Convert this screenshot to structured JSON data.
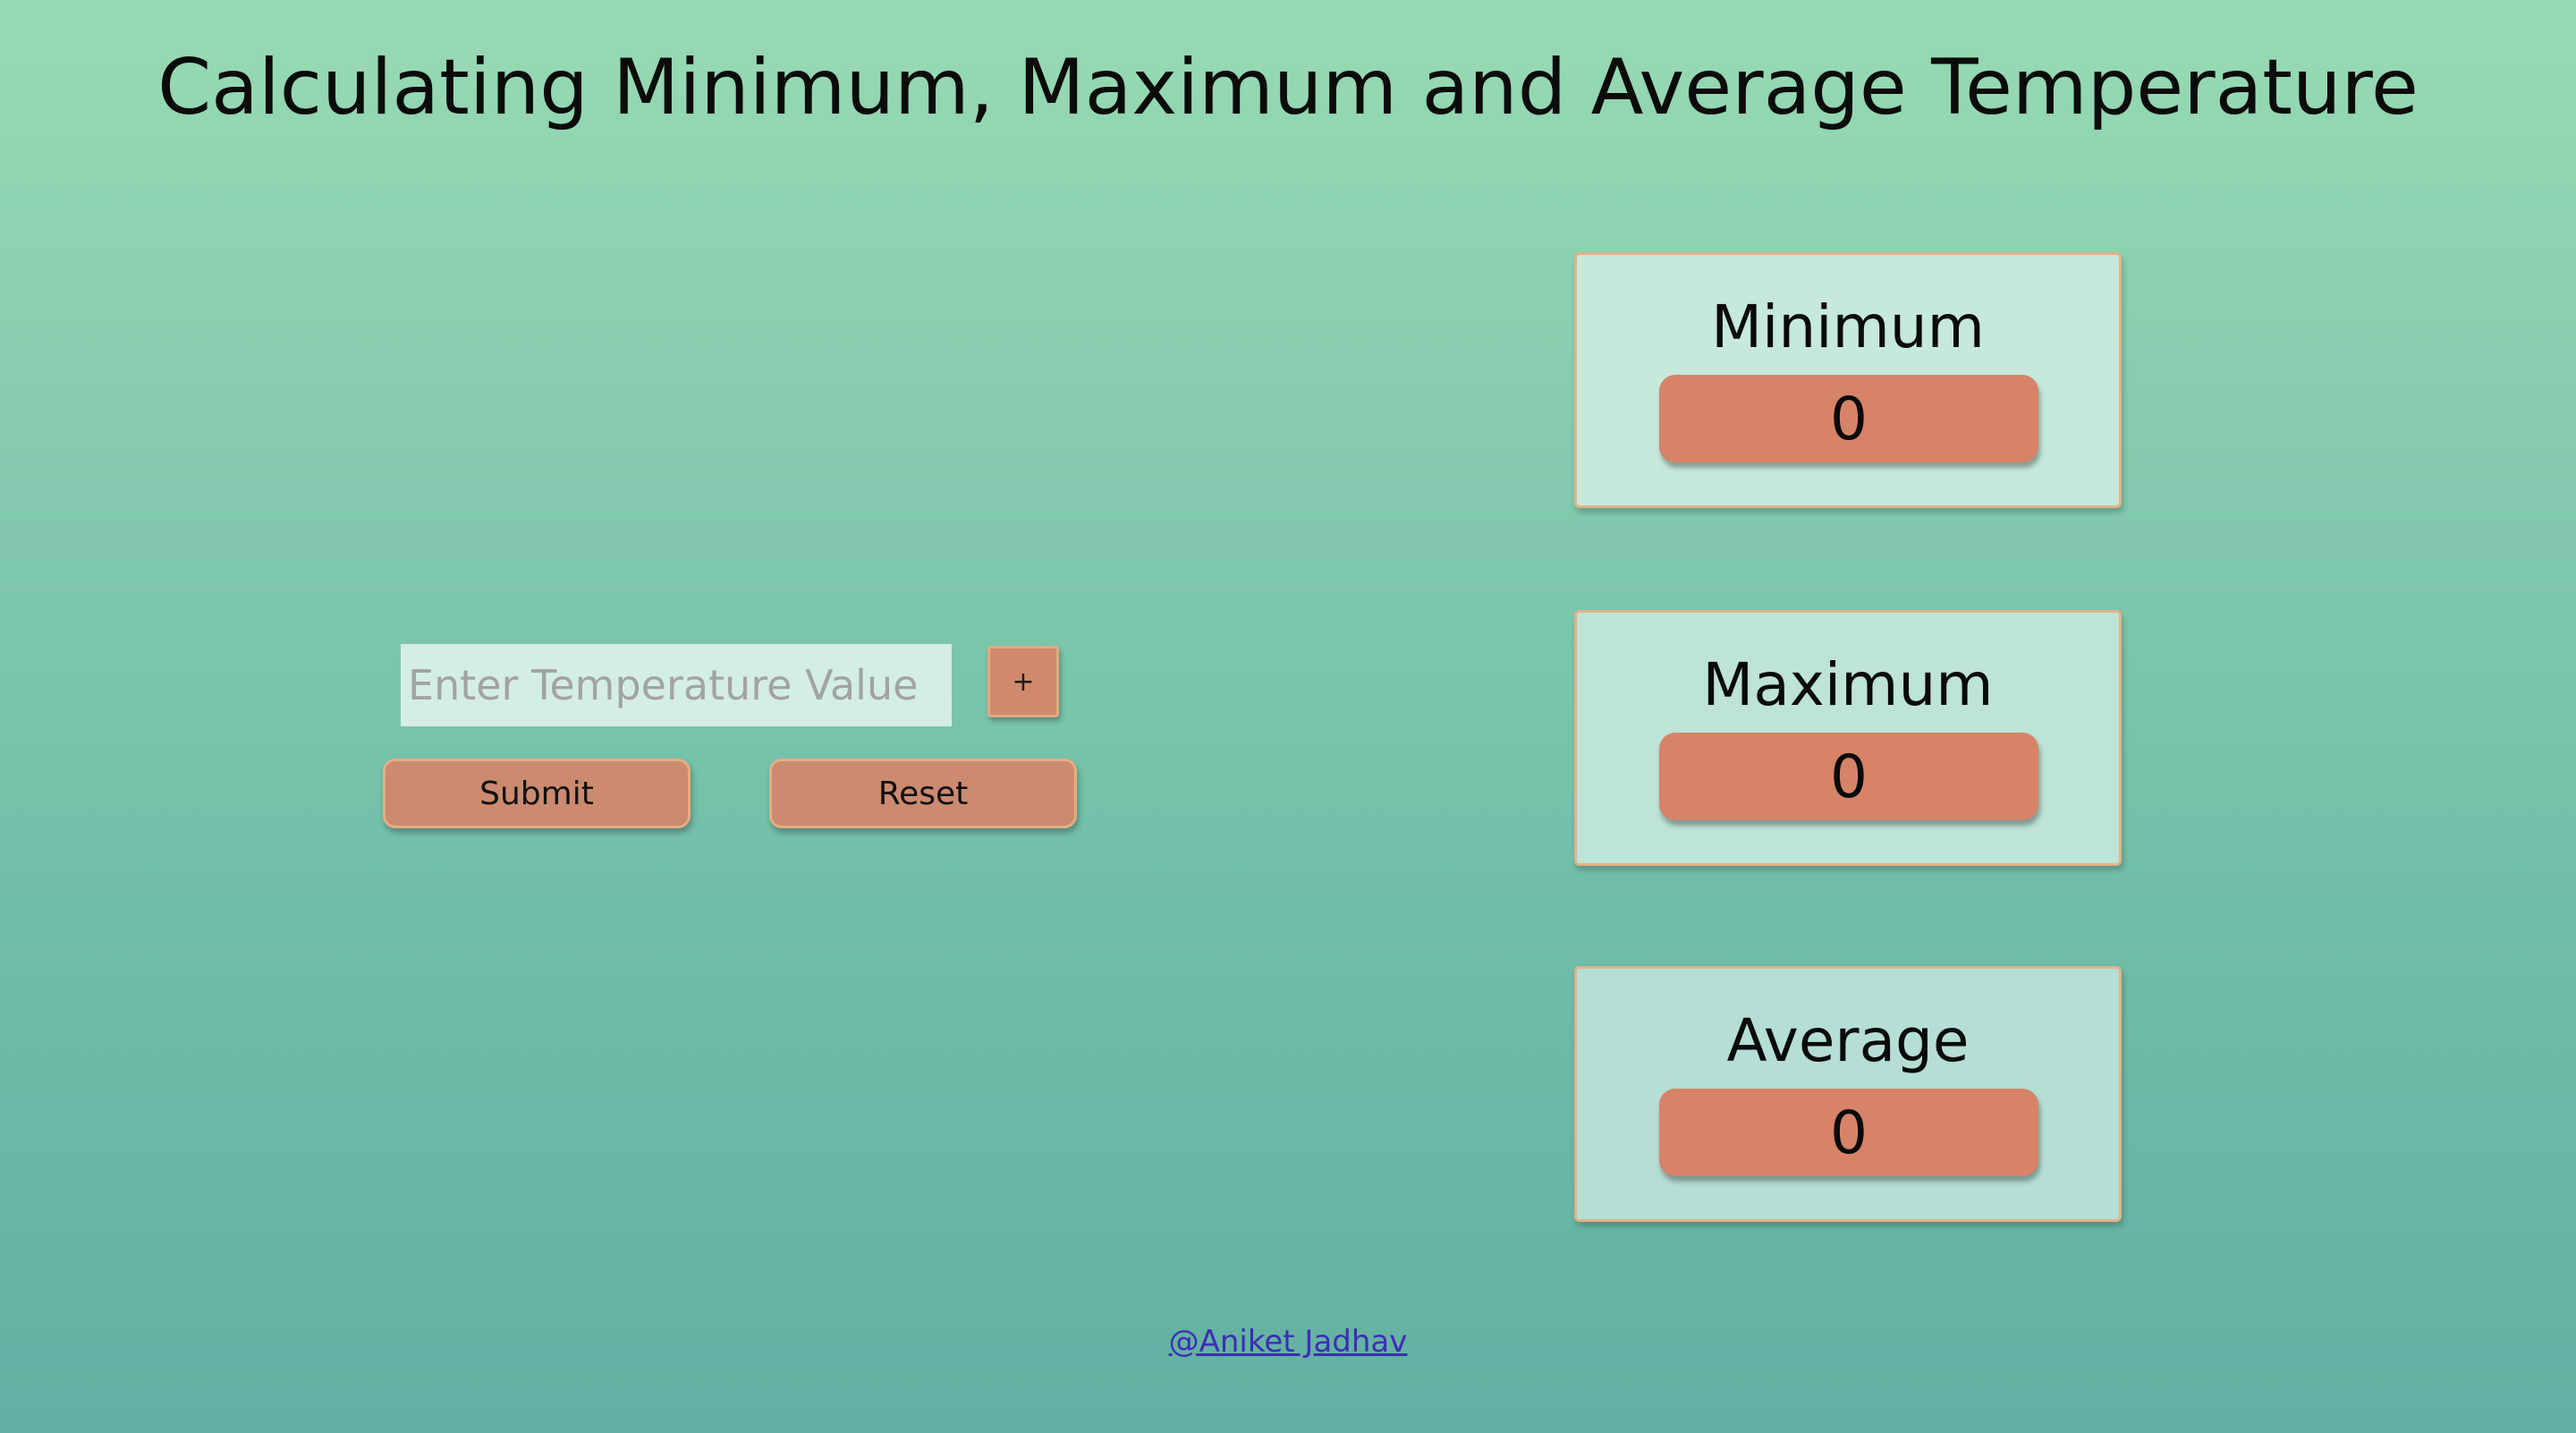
{
  "header": {
    "title": "Calculating Minimum, Maximum and Average Temperature"
  },
  "input_panel": {
    "temperature_input": {
      "placeholder": "Enter Temperature Value",
      "value": ""
    },
    "add_label": "+",
    "submit_label": "Submit",
    "reset_label": "Reset"
  },
  "results": {
    "minimum": {
      "label": "Minimum",
      "value": "0"
    },
    "maximum": {
      "label": "Maximum",
      "value": "0"
    },
    "average": {
      "label": "Average",
      "value": "0"
    }
  },
  "footer": {
    "credit_link": "@Aniket Jadhav"
  },
  "colors": {
    "background_top": "#98dab3",
    "background_bottom": "#62b0a2",
    "button_fill": "#cc8a70",
    "value_fill": "#d68368",
    "card_border": "#e3b287",
    "link": "#3d2db5"
  }
}
